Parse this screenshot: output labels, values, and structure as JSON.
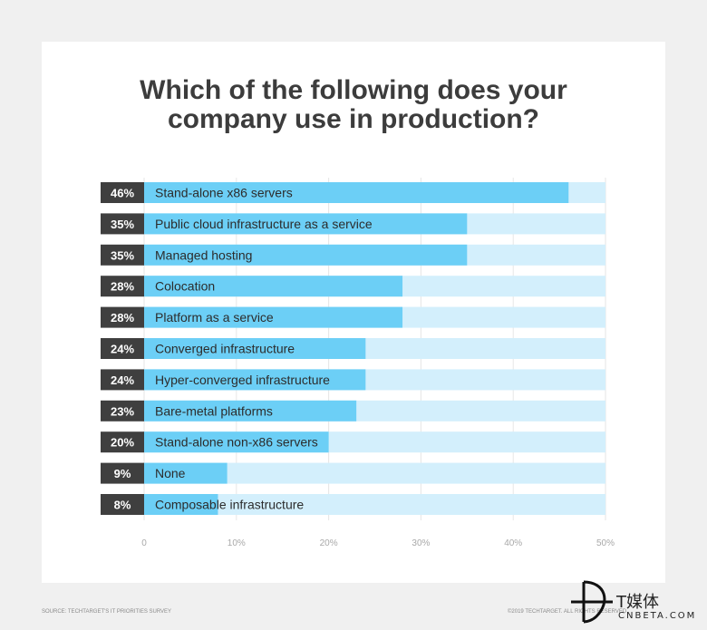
{
  "chart_data": {
    "type": "bar",
    "orientation": "horizontal",
    "title_lines": [
      "Which of the following does your",
      "company use in production?"
    ],
    "categories": [
      "Stand-alone x86 servers",
      "Public cloud infrastructure as a service",
      "Managed hosting",
      "Colocation",
      "Platform as a service",
      "Converged infrastructure",
      "Hyper-converged infrastructure",
      "Bare-metal platforms",
      "Stand-alone non-x86 servers",
      "None",
      "Composable infrastructure"
    ],
    "values": [
      46,
      35,
      35,
      28,
      28,
      24,
      24,
      23,
      20,
      9,
      8
    ],
    "value_labels": [
      "46%",
      "35%",
      "35%",
      "28%",
      "28%",
      "24%",
      "24%",
      "23%",
      "20%",
      "9%",
      "8%"
    ],
    "xlim": [
      0,
      50
    ],
    "ticks": [
      0,
      10,
      20,
      30,
      40,
      50
    ],
    "tick_labels": [
      "0",
      "10%",
      "20%",
      "30%",
      "40%",
      "50%"
    ],
    "grid": true,
    "colors": {
      "bar": "#6ccff6",
      "track": "#d3effc",
      "label_box": "#3f3f3f",
      "grid": "#e6e6e6"
    }
  },
  "footer": {
    "source": "SOURCE: TECHTARGET'S IT PRIORITIES SURVEY",
    "copyright": "©2019 TECHTARGET. ALL RIGHTS RESERVED"
  },
  "watermark": {
    "text": "T媒体",
    "sub": "CNBETA.COM"
  }
}
